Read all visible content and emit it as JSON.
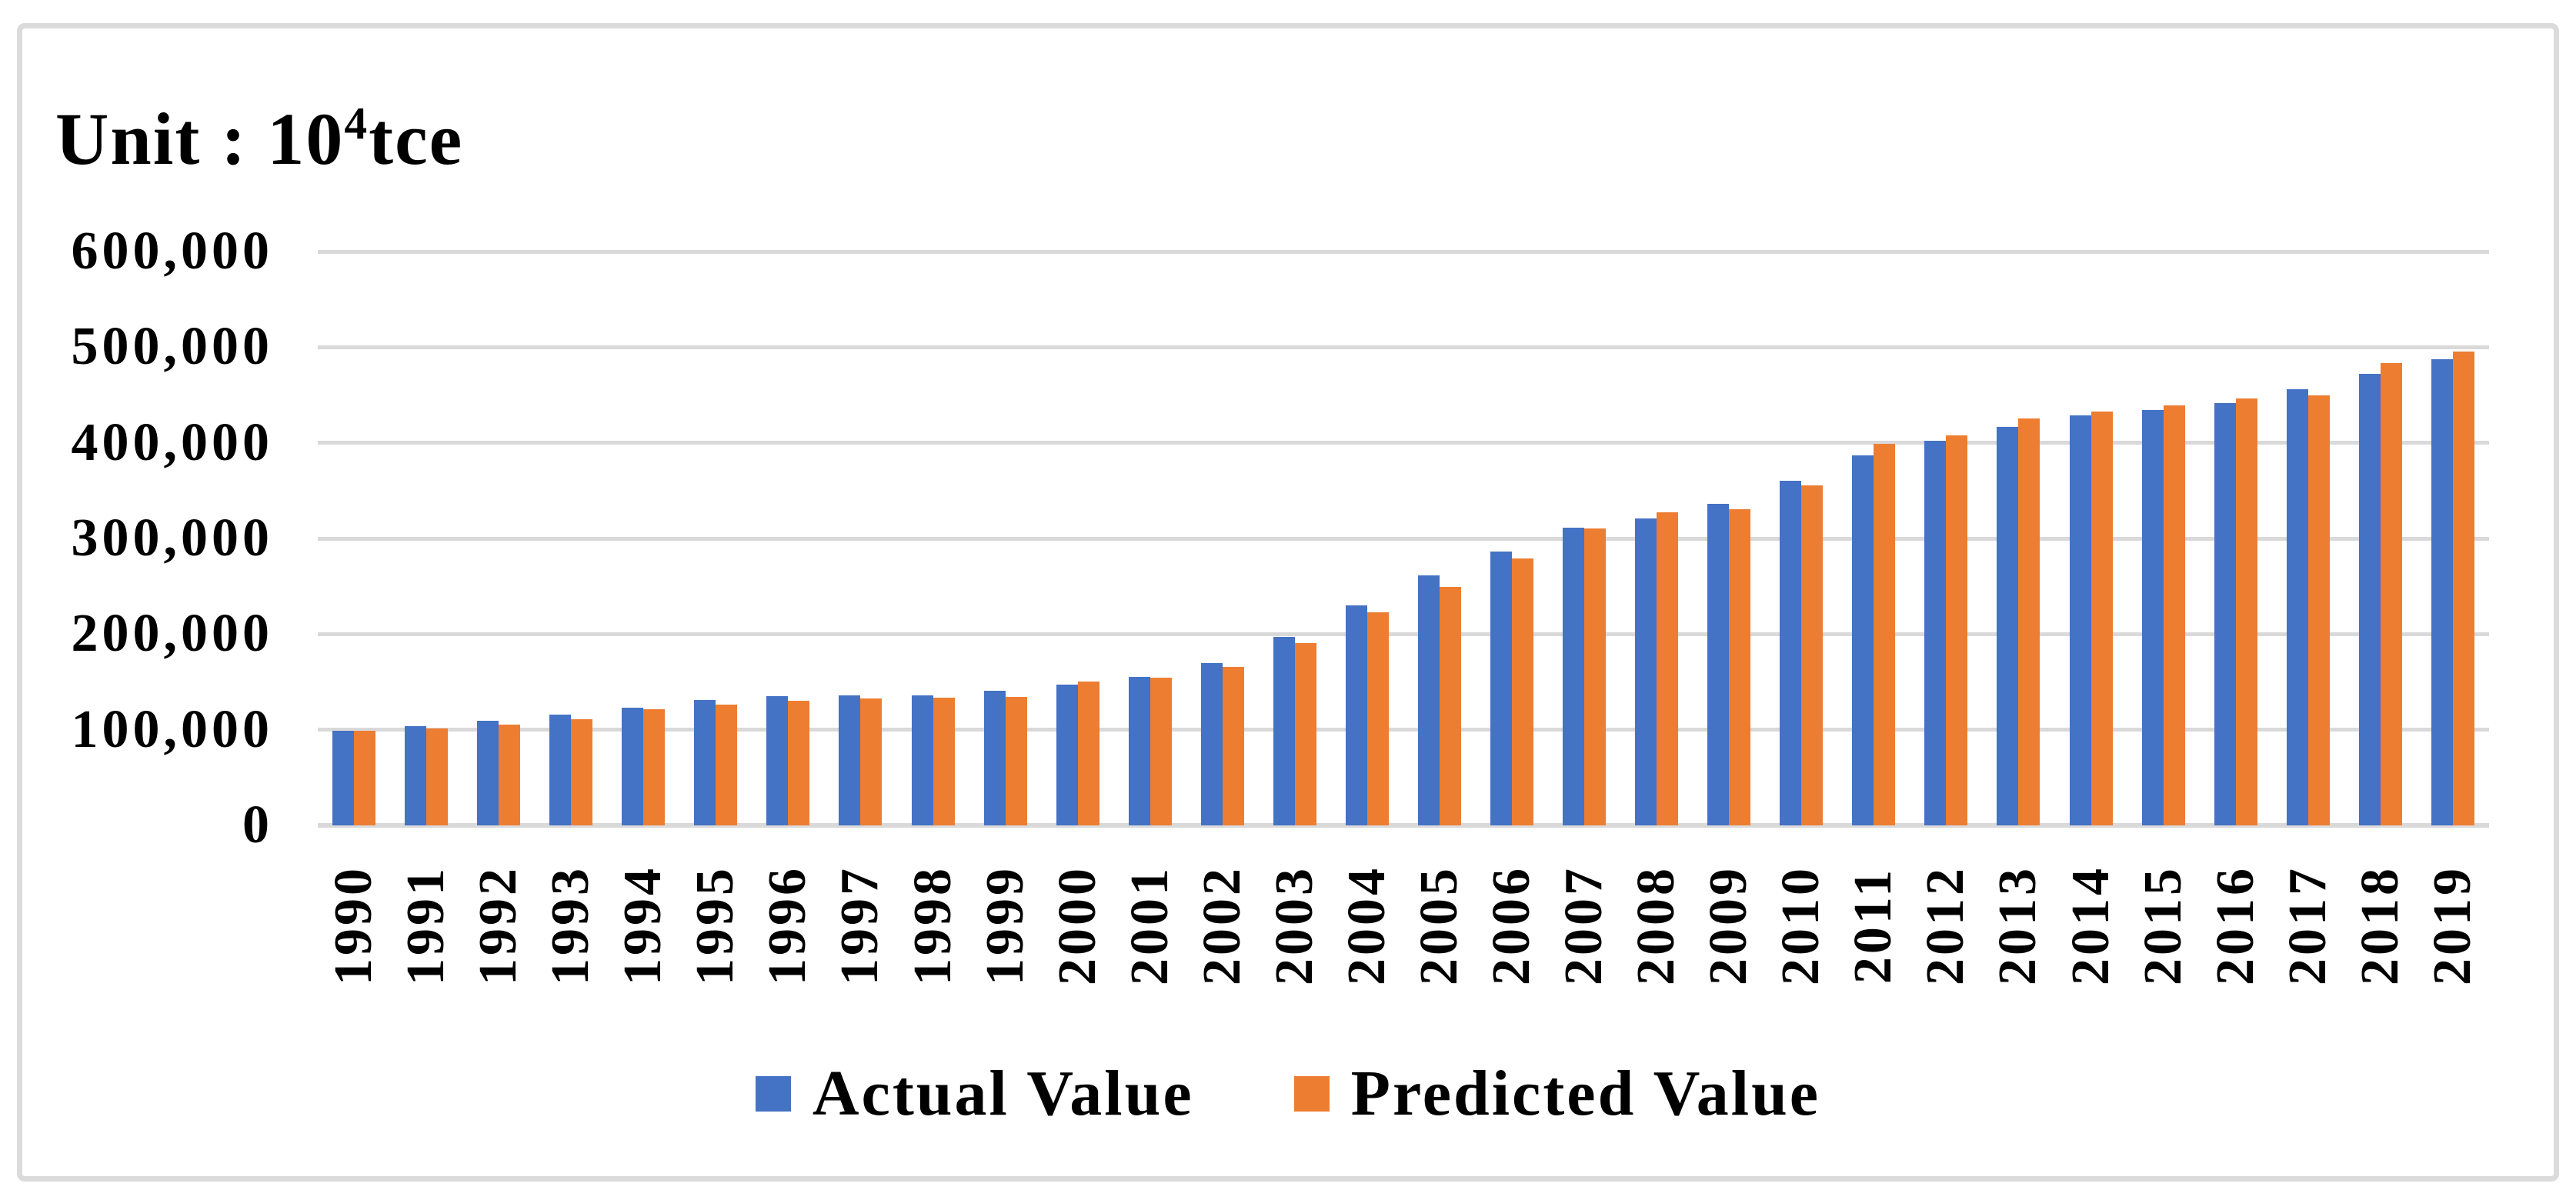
{
  "figure": {
    "title": {
      "prefix": "Unit : 10",
      "superscript": "4",
      "suffix": "tce"
    }
  },
  "legend": {
    "actual_label": "Actual Value",
    "predicted_label": "Predicted Value"
  },
  "colors": {
    "actual_blue": "#4472C4",
    "predicted_orange": "#ED7D31",
    "gridline_gray": "#D9D9D9",
    "frame_border_gray": "#DBDBDB",
    "text_black": "#000000"
  },
  "chart_data": {
    "type": "bar",
    "title": "Unit : 10⁴tce",
    "categories": [
      "1990",
      "1991",
      "1992",
      "1993",
      "1994",
      "1995",
      "1996",
      "1997",
      "1998",
      "1999",
      "2000",
      "2001",
      "2002",
      "2003",
      "2004",
      "2005",
      "2006",
      "2007",
      "2008",
      "2009",
      "2010",
      "2011",
      "2012",
      "2013",
      "2014",
      "2015",
      "2016",
      "2017",
      "2018",
      "2019"
    ],
    "series": [
      {
        "name": "Actual Value",
        "color": "#4472C4",
        "values": [
          98703,
          103783,
          109170,
          115993,
          122737,
          131176,
          135192,
          135909,
          136184,
          140569,
          146964,
          155547,
          169577,
          197083,
          230281,
          261369,
          286467,
          311442,
          320611,
          336126,
          360648,
          387043,
          402138,
          416913,
          428334,
          434113,
          441492,
          455827,
          471925,
          487488
        ]
      },
      {
        "name": "Predicted Value",
        "color": "#ED7D31",
        "values": [
          98700,
          101500,
          105500,
          111000,
          121500,
          126000,
          130500,
          132500,
          133500,
          134500,
          150500,
          154500,
          166000,
          190500,
          222500,
          249000,
          279500,
          310500,
          327500,
          330500,
          355500,
          399000,
          408000,
          425500,
          433000,
          439500,
          446500,
          450000,
          483500,
          495500
        ]
      }
    ],
    "ylabel": "10⁴ tce",
    "xlabel": "",
    "ylim": [
      0,
      600000
    ],
    "y_tick_step": 100000,
    "y_tick_labels": [
      "0",
      "100,000",
      "200,000",
      "300,000",
      "400,000",
      "500,000",
      "600,000"
    ],
    "grid": "horizontal",
    "legend_position": "bottom",
    "x_tick_rotation_deg": 90
  }
}
